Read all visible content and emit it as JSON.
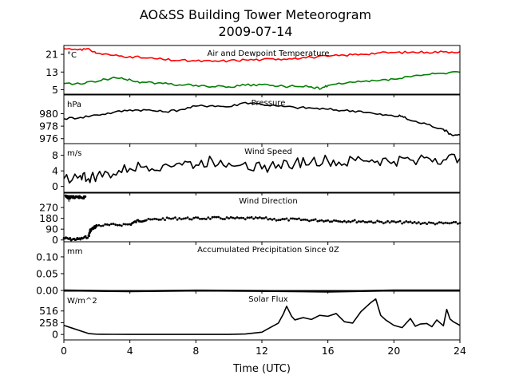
{
  "figure": {
    "title_line1": "AO&SS Building Tower Meteorogram",
    "title_line2": "2009-07-14",
    "xlabel": "Time (UTC)",
    "xticks": [
      "0",
      "4",
      "8",
      "12",
      "16",
      "20",
      "24"
    ]
  },
  "chart_data": [
    {
      "type": "line",
      "title": "Air and Dewpoint Temperature",
      "unit_label": "°C",
      "ylim": [
        3,
        25
      ],
      "yticks": [
        "5",
        "13",
        "21"
      ],
      "ytick_values": [
        5,
        13,
        21
      ],
      "series": [
        {
          "color": "#ff0000",
          "x": [
            0,
            1,
            1.6,
            2,
            3,
            4,
            5,
            6,
            7,
            8,
            9,
            10,
            11,
            12,
            13,
            14,
            15,
            16,
            17,
            18,
            19,
            20,
            21,
            22,
            23,
            24
          ],
          "y": [
            23.5,
            23.4,
            23.0,
            21.5,
            20.5,
            20.0,
            19.3,
            18.7,
            18.2,
            18.0,
            17.8,
            18.1,
            18.5,
            18.6,
            18.9,
            19.3,
            19.7,
            20.1,
            20.6,
            21.1,
            21.6,
            21.8,
            21.9,
            22.0,
            22.1,
            22.2
          ]
        },
        {
          "color": "#008000",
          "x": [
            0,
            1,
            1.8,
            2.5,
            3.5,
            4.2,
            5,
            6,
            7,
            8,
            9,
            10,
            11,
            12,
            13,
            14,
            15,
            15.6,
            16,
            17,
            18,
            19,
            20,
            21,
            22,
            23,
            24
          ],
          "y": [
            7.8,
            7.6,
            8.6,
            9.8,
            10.4,
            8.8,
            8.3,
            7.8,
            7.2,
            7.0,
            6.4,
            6.3,
            7.0,
            7.3,
            6.6,
            6.5,
            6.3,
            5.5,
            6.9,
            7.8,
            8.6,
            9.0,
            9.8,
            10.8,
            11.8,
            12.4,
            12.9
          ]
        }
      ]
    },
    {
      "type": "line",
      "title": "Pressure",
      "unit_label": "hPa",
      "ylim": [
        975.2,
        983.0
      ],
      "yticks": [
        "976",
        "978",
        "980"
      ],
      "ytick_values": [
        976,
        978,
        980
      ],
      "series": [
        {
          "color": "#000000",
          "x": [
            0,
            1,
            2,
            3,
            4,
            5,
            6,
            7,
            8,
            9,
            10,
            11,
            12,
            13,
            14,
            15,
            16,
            17,
            18,
            19,
            20,
            20.5,
            21,
            22,
            23,
            23.5,
            24
          ],
          "y": [
            979.2,
            979.4,
            979.8,
            980.2,
            980.6,
            980.6,
            980.3,
            980.6,
            981.2,
            981.3,
            981.1,
            981.8,
            981.5,
            981.2,
            981.0,
            980.9,
            980.7,
            980.5,
            980.4,
            979.9,
            979.6,
            979.6,
            978.9,
            978.3,
            977.5,
            976.6,
            976.6
          ]
        }
      ]
    },
    {
      "type": "line",
      "title": "Wind Speed",
      "unit_label": "m/s",
      "ylim": [
        -1.5,
        11
      ],
      "yticks": [
        "0",
        "4",
        "8"
      ],
      "ytick_values": [
        0,
        4,
        8
      ],
      "series": [
        {
          "color": "#000000",
          "x": [
            0,
            1,
            1.5,
            2,
            3,
            4,
            5,
            6,
            7,
            8,
            9,
            10,
            11,
            12,
            13,
            14,
            15,
            16,
            17,
            18,
            19,
            20,
            21,
            22,
            23,
            24
          ],
          "y": [
            2.0,
            2.8,
            2.0,
            2.6,
            3.2,
            4.6,
            5.2,
            5.4,
            6.0,
            5.5,
            6.6,
            6.0,
            6.2,
            4.5,
            5.6,
            6.0,
            6.4,
            6.6,
            5.8,
            7.0,
            6.5,
            6.4,
            6.8,
            7.5,
            6.8,
            7.2
          ]
        }
      ]
    },
    {
      "type": "scatter",
      "title": "Wind Direction",
      "unit_label": "°",
      "ylim": [
        -15,
        390
      ],
      "yticks": [
        "0",
        "90",
        "180",
        "270"
      ],
      "ytick_values": [
        0,
        90,
        180,
        270
      ],
      "series": [
        {
          "color": "#000000",
          "x": [
            0,
            0.5,
            1,
            1.5,
            1.6,
            1.8,
            2,
            3,
            4,
            4.5,
            5,
            6,
            7,
            8,
            9,
            10,
            11,
            12,
            13,
            14,
            15,
            16,
            17,
            18,
            19,
            20,
            21,
            22,
            23,
            24
          ],
          "y": [
            15,
            5,
            8,
            30,
            80,
            100,
            120,
            125,
            130,
            160,
            165,
            175,
            180,
            178,
            182,
            180,
            178,
            180,
            170,
            170,
            165,
            162,
            158,
            155,
            150,
            148,
            145,
            140,
            138,
            140
          ]
        },
        {
          "color": "#000000",
          "x": [
            0.1,
            0.3,
            0.5,
            0.7,
            0.9,
            1.1,
            1.3
          ],
          "y": [
            360,
            355,
            358,
            352,
            357,
            354,
            356
          ]
        }
      ]
    },
    {
      "type": "line",
      "title": "Accumulated Precipitation Since 0Z",
      "unit_label": "mm",
      "ylim": [
        0,
        0.145
      ],
      "yticks": [
        "0.00",
        "0.05",
        "0.10"
      ],
      "ytick_values": [
        0,
        0.05,
        0.1
      ],
      "series": [
        {
          "color": "#000000",
          "x": [
            0,
            24
          ],
          "y": [
            0,
            0
          ]
        }
      ]
    },
    {
      "type": "line",
      "title": "Solar Flux",
      "unit_label": "W/m^2",
      "ylim": [
        -120,
        950
      ],
      "yticks": [
        "0",
        "258",
        "516"
      ],
      "ytick_values": [
        0,
        258,
        516
      ],
      "series": [
        {
          "color": "#000000",
          "x": [
            0,
            0.5,
            1,
            1.5,
            2,
            3,
            4,
            5,
            6,
            7,
            8,
            9,
            10,
            11,
            12,
            12.5,
            13,
            13.3,
            13.5,
            13.8,
            14,
            14.5,
            15,
            15.5,
            16,
            16.5,
            17,
            17.5,
            18,
            18.3,
            18.6,
            18.9,
            19.2,
            19.5,
            20,
            20.5,
            21,
            21.3,
            21.6,
            22,
            22.3,
            22.6,
            23,
            23.2,
            23.4,
            23.6,
            24
          ],
          "y": [
            200,
            140,
            80,
            20,
            5,
            3,
            2,
            2,
            2,
            2,
            2,
            2,
            2,
            10,
            50,
            150,
            250,
            450,
            620,
            400,
            320,
            370,
            330,
            420,
            400,
            460,
            280,
            250,
            500,
            600,
            700,
            780,
            420,
            320,
            200,
            150,
            350,
            180,
            230,
            240,
            170,
            320,
            190,
            550,
            340,
            280,
            200
          ]
        }
      ]
    }
  ]
}
